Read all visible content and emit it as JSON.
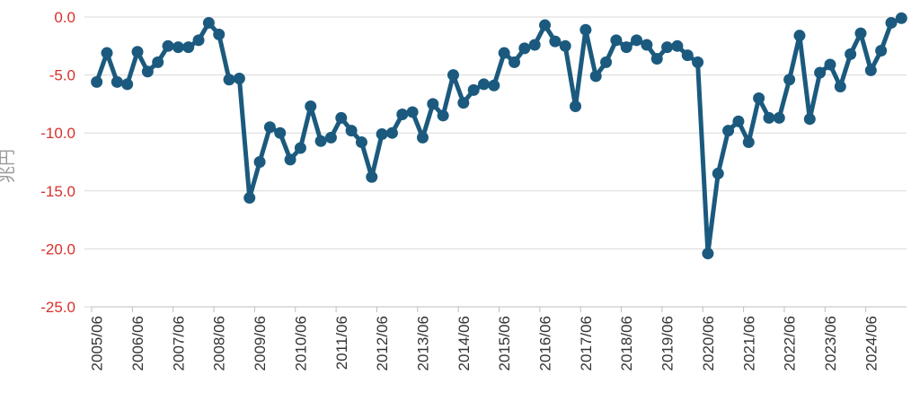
{
  "chart_data": {
    "type": "line",
    "y_label": "兆円",
    "categories": [
      "2005/06",
      null,
      null,
      null,
      "2006/06",
      null,
      null,
      null,
      "2007/06",
      null,
      null,
      null,
      "2008/06",
      null,
      null,
      null,
      "2009/06",
      null,
      null,
      null,
      "2010/06",
      null,
      null,
      null,
      "2011/06",
      null,
      null,
      null,
      "2012/06",
      null,
      null,
      null,
      "2013/06",
      null,
      null,
      null,
      "2014/06",
      null,
      null,
      null,
      "2015/06",
      null,
      null,
      null,
      "2016/06",
      null,
      null,
      null,
      "2017/06",
      null,
      null,
      null,
      "2018/06",
      null,
      null,
      null,
      "2019/06",
      null,
      null,
      null,
      "2020/06",
      null,
      null,
      null,
      "2021/06",
      null,
      null,
      null,
      "2022/06",
      null,
      null,
      null,
      "2023/06",
      null,
      null,
      null,
      "2024/06",
      null,
      null,
      null
    ],
    "series": [
      {
        "color": "#1b5a7e",
        "values": [
          -5.6,
          -3.1,
          -5.6,
          -5.8,
          -3.0,
          -4.7,
          -3.9,
          -2.5,
          -2.6,
          -2.6,
          -2.0,
          -0.5,
          -1.5,
          -5.4,
          -5.3,
          -15.6,
          -12.5,
          -9.5,
          -10.0,
          -12.3,
          -11.3,
          -7.7,
          -10.7,
          -10.4,
          -8.7,
          -9.8,
          -10.8,
          -13.8,
          -10.1,
          -10.0,
          -8.4,
          -8.2,
          -10.4,
          -7.5,
          -8.5,
          -5.0,
          -7.4,
          -6.3,
          -5.8,
          -5.9,
          -3.1,
          -3.9,
          -2.7,
          -2.4,
          -0.7,
          -2.1,
          -2.5,
          -7.7,
          -1.1,
          -5.1,
          -3.9,
          -2.0,
          -2.6,
          -2.0,
          -2.4,
          -3.6,
          -2.6,
          -2.5,
          -3.3,
          -3.9,
          -20.4,
          -13.5,
          -9.8,
          -9.0,
          -10.8,
          -7.0,
          -8.7,
          -8.7,
          -5.4,
          -1.6,
          -8.8,
          -4.8,
          -4.1,
          -6.0,
          -3.2,
          -1.4,
          -4.6,
          -2.9,
          -0.5,
          -0.1
        ]
      }
    ],
    "ylim": [
      -25,
      0
    ],
    "yticks": [
      {
        "value": 0,
        "label": "0.0"
      },
      {
        "value": -5,
        "label": "-5.0"
      },
      {
        "value": -10,
        "label": "-10.0"
      },
      {
        "value": -15,
        "label": "-15.0"
      },
      {
        "value": -20,
        "label": "-20.0"
      },
      {
        "value": -25,
        "label": "-25.0"
      }
    ],
    "tick_label_color": "#d9302b",
    "grid": true
  }
}
